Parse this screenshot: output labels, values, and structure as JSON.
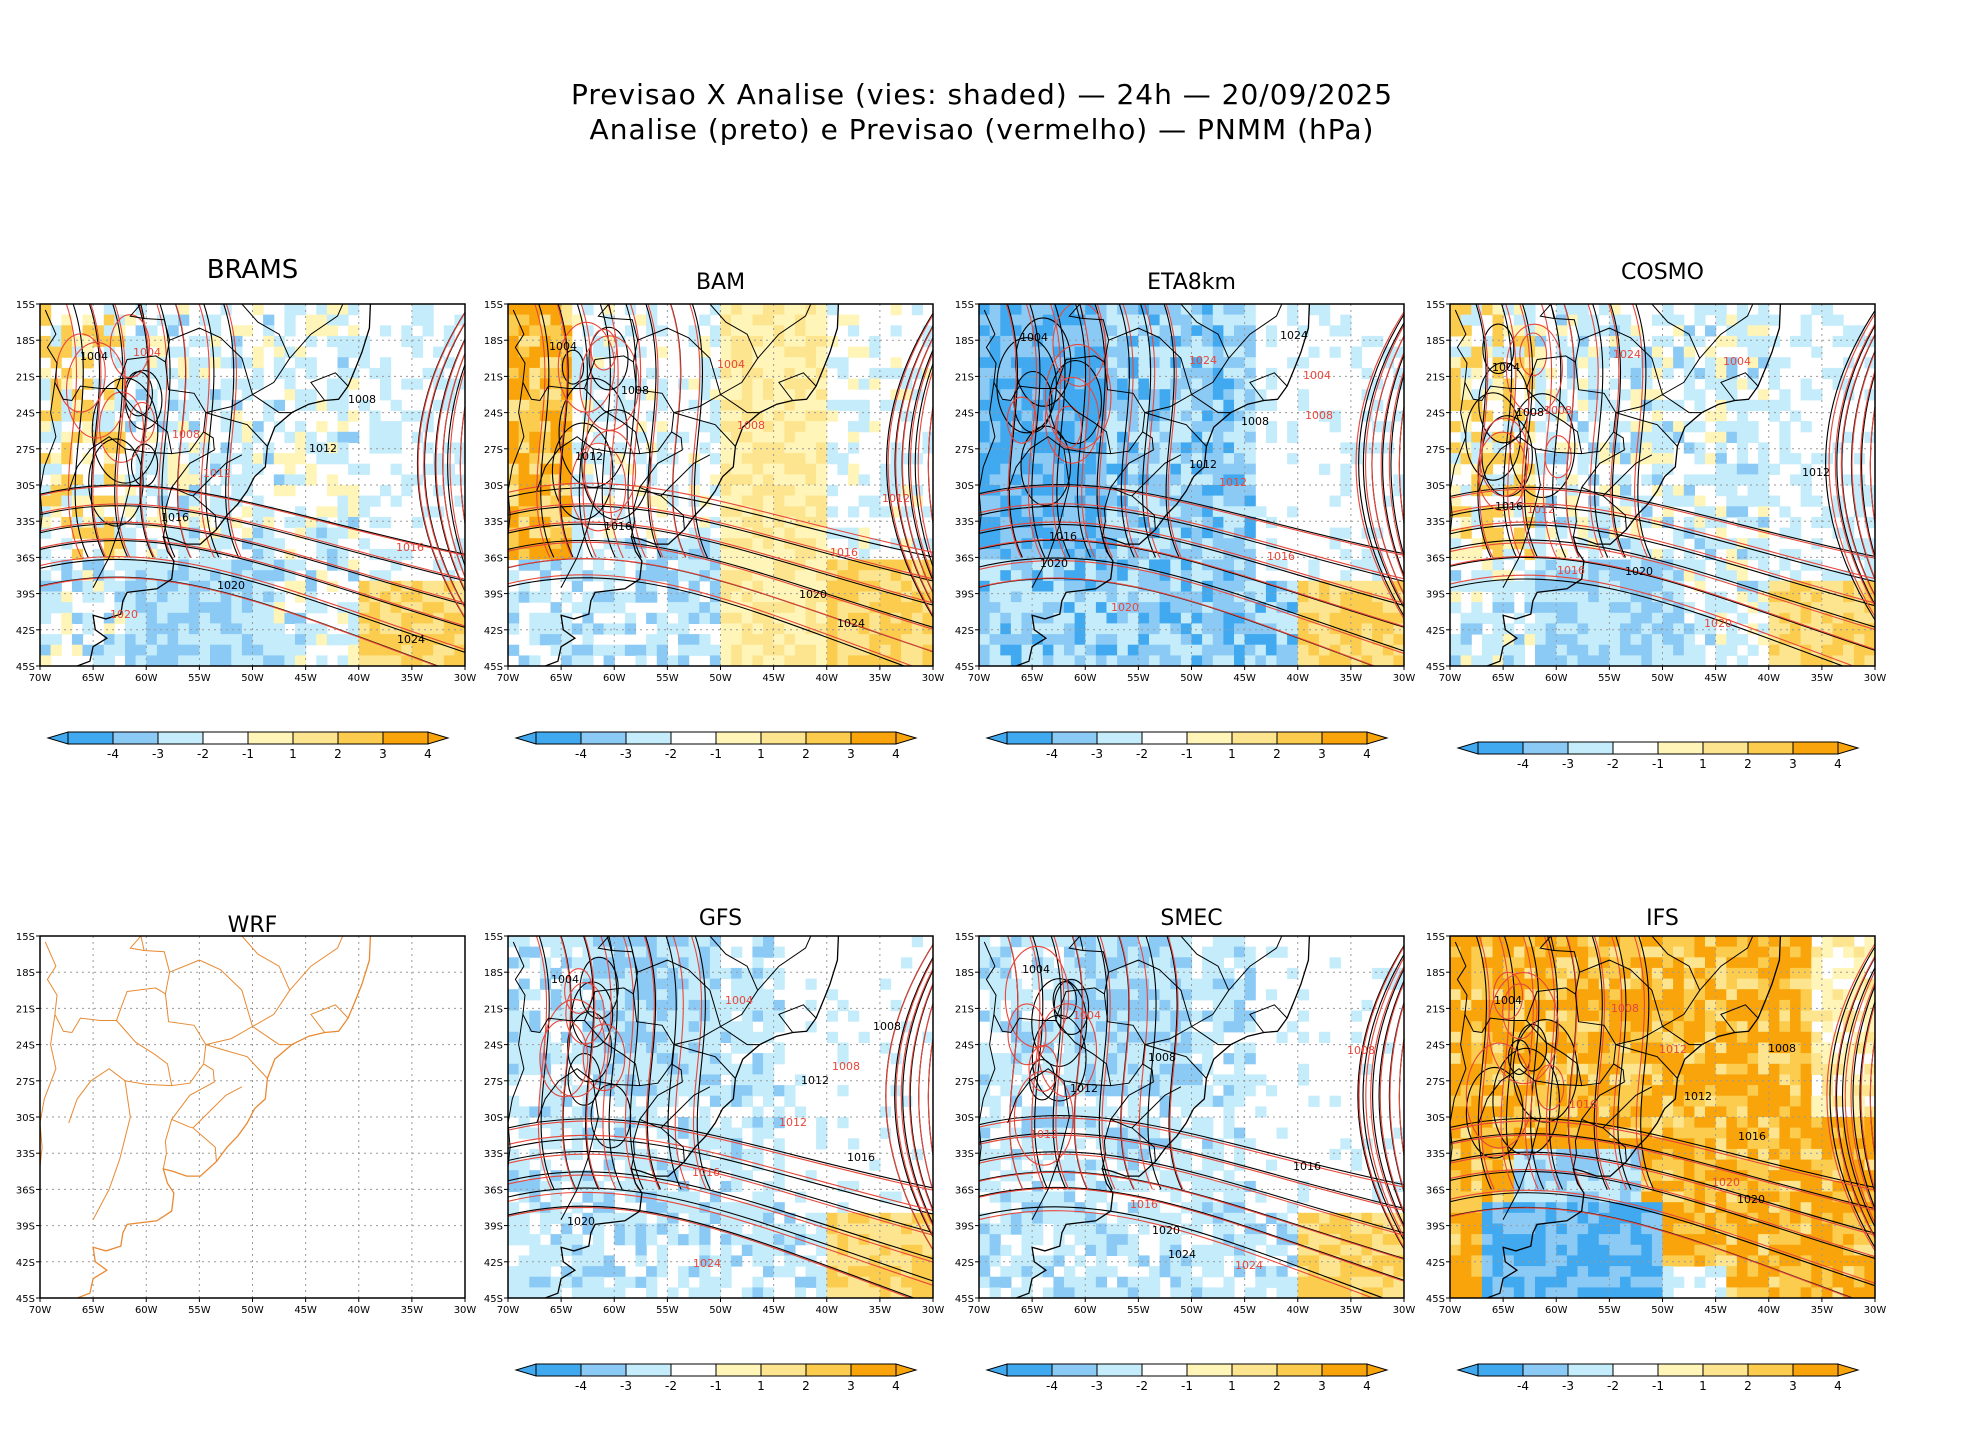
{
  "title_line1": "Previsao X Analise (vies: shaded) — 24h — 20/09/2025",
  "title_line2": "Analise (preto) e Previsao (vermelho) — PNMM (hPa)",
  "colors": {
    "c_m4": "#41a9f0",
    "c_m3": "#8ccaf6",
    "c_m2": "#c4ecfb",
    "c_m1": "#ffffff",
    "c_p1": "#fff5b8",
    "c_p2": "#fde590",
    "c_p3": "#fbcc4e",
    "c_p4": "#f8a40a",
    "analysis": "#000000",
    "forecast": "#e8463a",
    "coast": "#000000",
    "coast_wrf": "#e88a33",
    "grid": "#9a9a9a"
  },
  "chart_data": {
    "type": "heatmap",
    "description_fields": "Pressure bias maps per model",
    "colorbar_ticks": [
      "-4",
      "-3",
      "-2",
      "-1",
      "1",
      "2",
      "3",
      "4"
    ],
    "lat_labels": [
      "15S",
      "18S",
      "21S",
      "24S",
      "27S",
      "30S",
      "33S",
      "36S",
      "39S",
      "42S",
      "45S"
    ],
    "lon_labels": [
      "70W",
      "65W",
      "60W",
      "55W",
      "50W",
      "45W",
      "40W",
      "35W",
      "30W"
    ],
    "lat_range": [
      -45,
      -15
    ],
    "lon_range": [
      -70,
      -30
    ],
    "panels": [
      {
        "name": "BRAMS",
        "bias": "mixed",
        "has_colorbar": true,
        "analysis_labels": [
          "1004",
          "1008",
          "1012",
          "1016",
          "1020",
          "1024"
        ],
        "forecast_labels": [
          "1004",
          "1008",
          "1012",
          "1016",
          "1020"
        ]
      },
      {
        "name": "BAM",
        "bias": "positive-ocean",
        "has_colorbar": true,
        "analysis_labels": [
          "1004",
          "1008",
          "1012",
          "1016",
          "1020",
          "1024"
        ],
        "forecast_labels": [
          "1004",
          "1008",
          "1012",
          "1016"
        ]
      },
      {
        "name": "ETA8km",
        "bias": "negative",
        "has_colorbar": true,
        "analysis_labels": [
          "1004",
          "1008",
          "1012",
          "1016",
          "1020",
          "1024"
        ],
        "forecast_labels": [
          "1004",
          "1008",
          "1012",
          "1016",
          "1020",
          "1024"
        ]
      },
      {
        "name": "COSMO",
        "bias": "mixed",
        "has_colorbar": true,
        "analysis_labels": [
          "1004",
          "1008",
          "1012",
          "1016",
          "1020"
        ],
        "forecast_labels": [
          "1004",
          "1008",
          "1012",
          "1016",
          "1020",
          "1024"
        ]
      },
      {
        "name": "WRF",
        "bias": "none",
        "has_colorbar": false,
        "analysis_labels": [],
        "forecast_labels": []
      },
      {
        "name": "GFS",
        "bias": "negative-land",
        "has_colorbar": true,
        "analysis_labels": [
          "1004",
          "1008",
          "1012",
          "1016",
          "1020"
        ],
        "forecast_labels": [
          "1004",
          "1008",
          "1012",
          "1016",
          "1024"
        ]
      },
      {
        "name": "SMEC",
        "bias": "negative-land",
        "has_colorbar": true,
        "analysis_labels": [
          "1004",
          "1008",
          "1012",
          "1016",
          "1020",
          "1024"
        ],
        "forecast_labels": [
          "1004",
          "1008",
          "1012",
          "1016",
          "1024"
        ]
      },
      {
        "name": "IFS",
        "bias": "strong-positive",
        "has_colorbar": true,
        "analysis_labels": [
          "1004",
          "1008",
          "1012",
          "1016",
          "1020"
        ],
        "forecast_labels": [
          "1008",
          "1012",
          "1016",
          "1020"
        ]
      }
    ]
  }
}
